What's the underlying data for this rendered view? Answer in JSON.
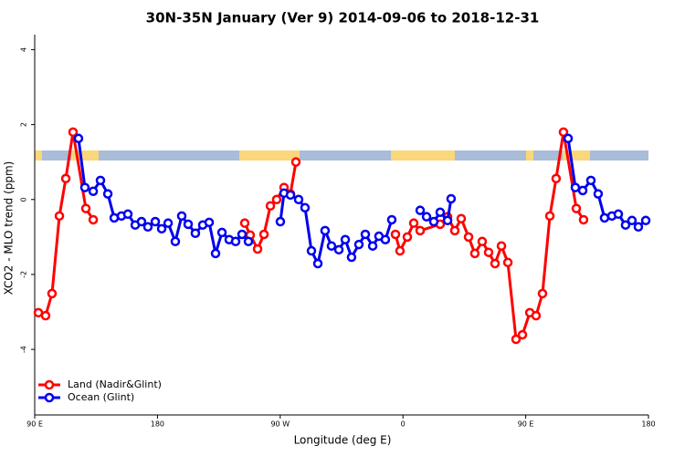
{
  "chart_data": {
    "type": "line",
    "title": "30N-35N January (Ver 9)   2014-09-06 to 2018-12-31",
    "xlabel": "Longitude (deg E)",
    "ylabel": "XCO2 - MLO trend (ppm)",
    "xlim": [
      90,
      540
    ],
    "ylim": [
      -5.75,
      4.4
    ],
    "xticks": [
      {
        "value": 90,
        "label": "90 E"
      },
      180,
      {
        "value": 270,
        "label": "90 W"
      },
      {
        "value": 360,
        "label": "0"
      },
      {
        "value": 450,
        "label": "90 E"
      },
      {
        "value": 540,
        "label": "180"
      }
    ],
    "yticks": [
      -4,
      -2,
      0,
      2,
      4
    ],
    "legend": "bottom-left",
    "series": [
      {
        "name": "Land (Nadir&Glint)",
        "color": "#ff0000",
        "x": [
          92.7,
          98.0,
          102.7,
          108.1,
          112.8,
          118.1,
          127.5,
          132.9,
          null,
          244.0,
          248.0,
          253.4,
          258.1,
          262.8,
          267.4,
          272.8,
          277.5,
          281.5,
          null,
          354.5,
          357.8,
          363.2,
          367.9,
          372.6,
          387.3,
          392.7,
          398.0,
          402.7,
          408.1,
          412.7,
          418.1,
          422.8,
          427.5,
          432.2,
          436.9,
          442.9,
          447.6,
          453.0,
          457.6,
          462.3,
          467.7,
          472.3,
          477.7,
          487.1,
          492.4
        ],
        "values": [
          -3.02,
          -3.1,
          -2.51,
          -0.44,
          0.56,
          1.8,
          -0.24,
          -0.54,
          null,
          -0.63,
          -0.95,
          -1.32,
          -0.93,
          -0.17,
          0.0,
          0.32,
          0.15,
          1.0,
          null,
          -0.93,
          -1.37,
          -1.0,
          -0.63,
          -0.83,
          -0.66,
          -0.46,
          -0.83,
          -0.51,
          -1.0,
          -1.44,
          -1.12,
          -1.41,
          -1.71,
          -1.24,
          -1.68,
          -3.73,
          -3.61,
          -3.02,
          -3.1,
          -2.51,
          -0.44,
          0.56,
          1.8,
          -0.24,
          -0.54
        ]
      },
      {
        "name": "Ocean (Glint)",
        "color": "#0000ee",
        "x": [
          122.1,
          126.8,
          132.9,
          138.2,
          143.6,
          148.3,
          153.6,
          158.3,
          163.7,
          168.3,
          173.0,
          178.4,
          183.1,
          187.8,
          193.1,
          197.8,
          202.5,
          207.8,
          213.2,
          217.9,
          222.6,
          227.3,
          232.6,
          237.3,
          242.0,
          246.7,
          null,
          270.1,
          272.8,
          277.5,
          283.5,
          288.2,
          292.9,
          297.6,
          302.9,
          307.6,
          313.0,
          317.7,
          322.3,
          327.7,
          332.4,
          337.8,
          342.4,
          347.1,
          351.8,
          null,
          372.6,
          377.3,
          382.6,
          387.3,
          392.7,
          395.3,
          null,
          481.1,
          486.4,
          491.8,
          497.8,
          503.1,
          507.8,
          513.2,
          517.9,
          523.2,
          527.9,
          532.6,
          538.0
        ],
        "values": [
          1.63,
          0.32,
          0.22,
          0.51,
          0.15,
          -0.49,
          -0.44,
          -0.39,
          -0.68,
          -0.59,
          -0.73,
          -0.59,
          -0.78,
          -0.63,
          -1.12,
          -0.44,
          -0.66,
          -0.9,
          -0.68,
          -0.61,
          -1.44,
          -0.88,
          -1.07,
          -1.12,
          -0.93,
          -1.12,
          null,
          -0.59,
          0.17,
          0.12,
          0.0,
          -0.22,
          -1.37,
          -1.71,
          -0.83,
          -1.24,
          -1.34,
          -1.07,
          -1.54,
          -1.2,
          -0.93,
          -1.24,
          -0.98,
          -1.07,
          -0.54,
          null,
          -0.29,
          -0.46,
          -0.59,
          -0.34,
          -0.56,
          0.02,
          null,
          1.63,
          0.32,
          0.24,
          0.51,
          0.15,
          -0.49,
          -0.44,
          -0.39,
          -0.68,
          -0.56,
          -0.73,
          -0.56
        ]
      }
    ]
  }
}
